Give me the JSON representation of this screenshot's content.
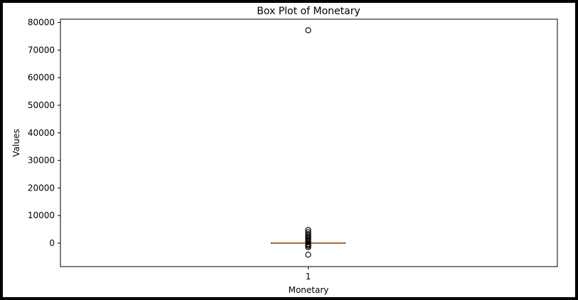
{
  "chart_data": {
    "type": "box",
    "title": "Box Plot of Monetary",
    "xlabel": "Monetary",
    "ylabel": "Values",
    "categories": [
      "1"
    ],
    "ylim": [
      -8500,
      81200
    ],
    "yticks": [
      0,
      10000,
      20000,
      30000,
      40000,
      50000,
      60000,
      70000,
      80000
    ],
    "ytick_labels": [
      "0",
      "10000",
      "20000",
      "30000",
      "40000",
      "50000",
      "60000",
      "70000",
      "80000"
    ],
    "box": {
      "category": "1",
      "q1": 0,
      "median": 0,
      "q3": 0,
      "whisker_low": 0,
      "whisker_high": 0,
      "median_color": "#e07b2a"
    },
    "outliers": [
      77200,
      4800,
      4000,
      3300,
      2700,
      2200,
      1800,
      1400,
      1000,
      700,
      400,
      -300,
      -600,
      -1000,
      -1500,
      -4200
    ],
    "grid": false,
    "legend": "none"
  }
}
